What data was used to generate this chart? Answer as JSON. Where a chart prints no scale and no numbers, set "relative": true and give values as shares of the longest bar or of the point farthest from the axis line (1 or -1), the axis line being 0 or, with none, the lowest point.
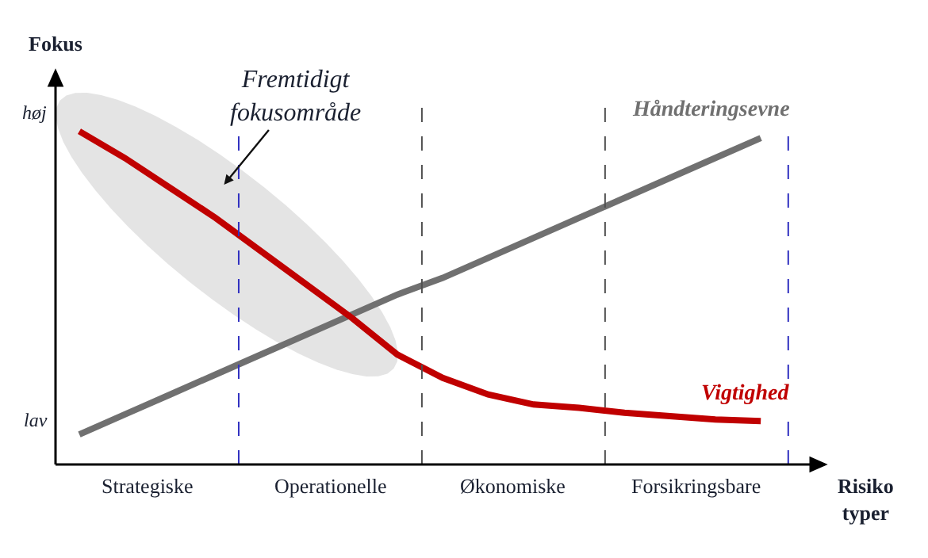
{
  "chart_data": {
    "type": "line",
    "relative": true,
    "ylabel": "Fokus",
    "xlabel": "Risiko typer",
    "categories": [
      null,
      null,
      null,
      null,
      null,
      null,
      null,
      null,
      null,
      null,
      null,
      null,
      null,
      null,
      null,
      null
    ],
    "series": [
      {
        "name": "Håndteringsevne",
        "color": "#707070",
        "values": [
          0.09,
          0.15,
          0.21,
          0.27,
          0.33,
          0.39,
          0.45,
          0.51,
          0.56,
          0.62,
          0.68,
          0.74,
          0.8,
          0.86,
          0.92,
          0.98
        ]
      },
      {
        "name": "Vigtighed",
        "color": "#c00000",
        "values": [
          1,
          0.92,
          0.83,
          0.74,
          0.64,
          0.54,
          0.44,
          0.33,
          0.26,
          0.21,
          0.18,
          0.17,
          0.155,
          0.145,
          0.135,
          0.13
        ]
      }
    ],
    "annotations": [
      "Fremtidigt fokusområde",
      "høj",
      "lav",
      "Strategiske",
      "Operationelle",
      "Økonomiske",
      "Forsikringsbare"
    ],
    "grid": false,
    "legend": false,
    "marker": "none",
    "line_style": "solid"
  }
}
